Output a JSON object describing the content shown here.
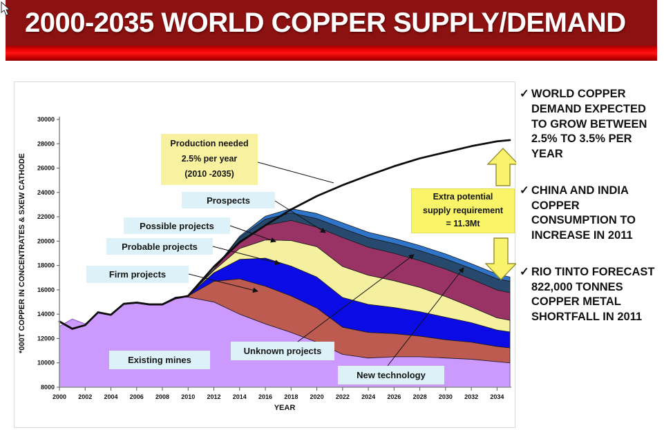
{
  "header": {
    "title": "2000-2035 WORLD COPPER SUPPLY/DEMAND"
  },
  "sidebar": {
    "check_glyph": "✓",
    "bullets": [
      "WORLD COPPER DEMAND EXPECTED TO GROW BETWEEN 2.5% TO 3.5% PER YEAR",
      "CHINA AND INDIA COPPER CONSUMPTION TO INCREASE IN 2011",
      "RIO TINTO FORECAST 822,000 TONNES COPPER METAL SHORTFALL IN 2011"
    ]
  },
  "annotations": {
    "production_note": [
      "Production needed",
      "2.5% per year",
      "(2010 -2035)"
    ],
    "extra_note": [
      "Extra potential",
      "supply requirement",
      "= 11.3Mt"
    ],
    "prospects": "Prospects",
    "possible": "Possible projects",
    "probable": "Probable projects",
    "firm": "Firm projects",
    "existing": "Existing mines",
    "unknown": "Unknown projects",
    "newtech": "New technology"
  },
  "colors": {
    "banner_red": "#8c1111",
    "label_box_blue": "#dcf2f8",
    "label_box_yellow": "#f7f1a0",
    "arrow_yellow": "#f9f36b",
    "demand_line": "#0d0d0d"
  },
  "chart_data": {
    "type": "area",
    "stacked": true,
    "xlabel": "YEAR",
    "ylabel": "*000T COPPER IN CONCENTRATES & SXEW CATHODE",
    "ylim": [
      8000,
      30000
    ],
    "xlim": [
      2000,
      2035
    ],
    "grid": false,
    "y_ticks": [
      8000,
      10000,
      12000,
      14000,
      16000,
      18000,
      20000,
      22000,
      24000,
      26000,
      28000,
      30000
    ],
    "x_ticks": [
      2000,
      2002,
      2004,
      2006,
      2008,
      2010,
      2012,
      2014,
      2016,
      2018,
      2020,
      2022,
      2024,
      2026,
      2028,
      2030,
      2032,
      2034
    ],
    "years": [
      2000,
      2001,
      2002,
      2003,
      2004,
      2005,
      2006,
      2007,
      2008,
      2009,
      2010,
      2012,
      2014,
      2016,
      2018,
      2020,
      2022,
      2024,
      2026,
      2028,
      2030,
      2032,
      2034,
      2035
    ],
    "series": [
      {
        "name": "Existing mines",
        "color": "#cc99ff",
        "stacking": "absolute",
        "values": [
          13000,
          13600,
          13200,
          14100,
          13900,
          14800,
          14900,
          14850,
          14850,
          15400,
          15400,
          15000,
          14000,
          13200,
          12500,
          11700,
          10700,
          10400,
          10500,
          10500,
          10400,
          10300,
          10100,
          10000
        ]
      },
      {
        "name": "Firm projects",
        "color": "#be5b50",
        "stacking": "increment",
        "values": [
          0,
          0,
          0,
          0,
          0,
          0,
          0,
          0,
          0,
          0,
          100,
          1700,
          2900,
          3100,
          3000,
          2800,
          2230,
          2100,
          1900,
          1700,
          1500,
          1400,
          1250,
          1230
        ]
      },
      {
        "name": "Probable projects",
        "color": "#0b0be6",
        "stacking": "increment",
        "values": [
          0,
          0,
          0,
          0,
          0,
          0,
          0,
          0,
          0,
          0,
          0,
          700,
          1600,
          2300,
          2450,
          2550,
          2440,
          2300,
          2150,
          2000,
          1850,
          1600,
          1350,
          1310
        ]
      },
      {
        "name": "Possible projects",
        "color": "#f5f0a0",
        "stacking": "increment",
        "values": [
          0,
          0,
          0,
          0,
          0,
          0,
          0,
          0,
          0,
          0,
          0,
          200,
          900,
          1500,
          2100,
          2500,
          2550,
          2400,
          2200,
          2000,
          1700,
          1300,
          1000,
          960
        ]
      },
      {
        "name": "Prospects",
        "color": "#993366",
        "stacking": "increment",
        "values": [
          0,
          0,
          0,
          0,
          0,
          0,
          0,
          0,
          0,
          0,
          0,
          100,
          600,
          1200,
          1650,
          1600,
          2380,
          2300,
          2250,
          2200,
          2250,
          2280,
          2290,
          2270
        ]
      },
      {
        "name": "Unknown projects",
        "color": "#27496d",
        "stacking": "increment",
        "values": [
          0,
          0,
          0,
          0,
          0,
          0,
          0,
          0,
          0,
          0,
          0,
          0,
          300,
          500,
          620,
          700,
          740,
          780,
          800,
          820,
          840,
          870,
          920,
          930
        ]
      },
      {
        "name": "New technology",
        "color": "#2e74c8",
        "stacking": "increment",
        "values": [
          0,
          0,
          0,
          0,
          0,
          0,
          0,
          0,
          0,
          0,
          0,
          0,
          100,
          250,
          350,
          420,
          460,
          450,
          430,
          420,
          410,
          400,
          380,
          350
        ]
      }
    ],
    "demand_line": {
      "name": "Production needed 2.5% per year (2010-2035)",
      "color": "#0d0d0d",
      "values": [
        13400,
        12800,
        13100,
        14150,
        13950,
        14850,
        14950,
        14800,
        14800,
        15300,
        15500,
        17900,
        19900,
        21300,
        22600,
        23700,
        24600,
        25400,
        26150,
        26800,
        27300,
        27800,
        28200,
        28300
      ]
    },
    "extra_supply_gap_mt": "11.3Mt"
  }
}
